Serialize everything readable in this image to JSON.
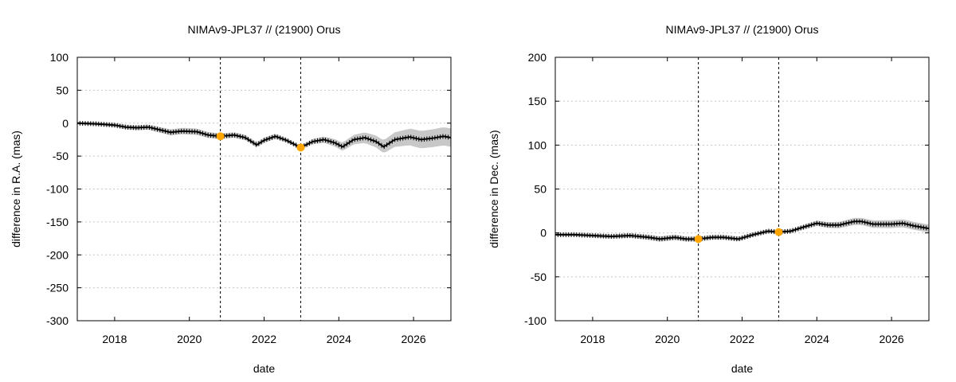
{
  "chart_data": [
    {
      "type": "line",
      "title": "NIMAv9-JPL37 // (21900) Orus",
      "xlabel": "date",
      "ylabel": "difference in R.A. (mas)",
      "xlim": [
        2017.0,
        2027.0
      ],
      "ylim": [
        -300,
        100
      ],
      "xticks": [
        2018,
        2020,
        2022,
        2024,
        2026
      ],
      "xtick_labels": [
        "2018",
        "2020",
        "2022",
        "2024",
        "2026"
      ],
      "yticks": [
        100,
        50,
        0,
        -50,
        -100,
        -150,
        -200,
        -250,
        -300
      ],
      "ytick_labels": [
        "100",
        "50",
        "0",
        "-50",
        "-100",
        "-150",
        "-200",
        "-250",
        "-300"
      ],
      "grid": true,
      "vlines": [
        2020.83,
        2022.98
      ],
      "markers": [
        {
          "x": 2020.83,
          "y": -20,
          "color": "#ffa500"
        },
        {
          "x": 2022.98,
          "y": -37,
          "color": "#ffa500"
        }
      ],
      "series": [
        {
          "color": "#000000",
          "x": [
            2017.0,
            2017.5,
            2018.0,
            2018.3,
            2018.6,
            2018.9,
            2019.2,
            2019.5,
            2019.8,
            2020.2,
            2020.5,
            2020.83,
            2021.2,
            2021.5,
            2021.8,
            2022.0,
            2022.3,
            2022.6,
            2022.98,
            2023.3,
            2023.6,
            2023.9,
            2024.1,
            2024.4,
            2024.7,
            2025.0,
            2025.2,
            2025.5,
            2025.9,
            2026.2,
            2026.5,
            2026.8,
            2027.0
          ],
          "y": [
            0,
            -1,
            -3,
            -6,
            -7,
            -6,
            -10,
            -14,
            -12,
            -13,
            -18,
            -20,
            -18,
            -22,
            -33,
            -26,
            -20,
            -26,
            -37,
            -28,
            -25,
            -30,
            -36,
            -25,
            -22,
            -28,
            -36,
            -25,
            -21,
            -25,
            -23,
            -20,
            -22
          ]
        }
      ],
      "uncertainty_band": {
        "color": "#c8c8c8",
        "x": [
          2017.0,
          2018.0,
          2019.0,
          2020.0,
          2021.0,
          2022.0,
          2022.98,
          2024.0,
          2025.0,
          2026.0,
          2027.0
        ],
        "halfwidth": [
          2,
          3,
          4,
          5,
          4,
          4,
          3,
          6,
          9,
          13,
          14
        ]
      }
    },
    {
      "type": "line",
      "title": "NIMAv9-JPL37 // (21900) Orus",
      "xlabel": "date",
      "ylabel": "difference in Dec. (mas)",
      "xlim": [
        2017.0,
        2027.0
      ],
      "ylim": [
        -100,
        200
      ],
      "xticks": [
        2018,
        2020,
        2022,
        2024,
        2026
      ],
      "xtick_labels": [
        "2018",
        "2020",
        "2022",
        "2024",
        "2026"
      ],
      "yticks": [
        200,
        150,
        100,
        50,
        0,
        -50,
        -100
      ],
      "ytick_labels": [
        "200",
        "150",
        "100",
        "50",
        "0",
        "-50",
        "-100"
      ],
      "grid": true,
      "vlines": [
        2020.83,
        2022.98
      ],
      "markers": [
        {
          "x": 2020.83,
          "y": -7,
          "color": "#ffa500"
        },
        {
          "x": 2022.98,
          "y": 1,
          "color": "#ffa500"
        }
      ],
      "series": [
        {
          "color": "#000000",
          "x": [
            2017.0,
            2017.5,
            2018.0,
            2018.5,
            2019.0,
            2019.5,
            2019.8,
            2020.2,
            2020.5,
            2020.83,
            2021.2,
            2021.5,
            2021.9,
            2022.3,
            2022.7,
            2022.98,
            2023.3,
            2023.6,
            2024.0,
            2024.3,
            2024.6,
            2025.0,
            2025.2,
            2025.5,
            2026.0,
            2026.3,
            2026.6,
            2027.0
          ],
          "y": [
            -2,
            -2,
            -3,
            -4,
            -3,
            -5,
            -7,
            -5,
            -7,
            -7,
            -5,
            -5,
            -7,
            -2,
            2,
            1,
            2,
            6,
            11,
            9,
            9,
            13,
            13,
            10,
            10,
            11,
            8,
            5
          ]
        }
      ],
      "uncertainty_band": {
        "color": "#c8c8c8",
        "x": [
          2017.0,
          2018.0,
          2019.0,
          2020.0,
          2021.0,
          2022.0,
          2022.98,
          2024.0,
          2025.0,
          2026.0,
          2027.0
        ],
        "halfwidth": [
          1.5,
          2,
          2.5,
          3,
          2.5,
          2.5,
          2,
          3,
          4,
          4.5,
          4.5
        ]
      }
    }
  ]
}
